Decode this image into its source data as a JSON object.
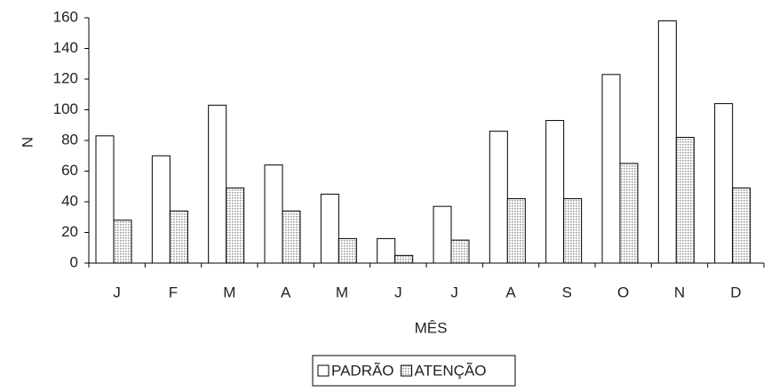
{
  "chart_data": {
    "type": "bar",
    "categories": [
      "J",
      "F",
      "M",
      "A",
      "M",
      "J",
      "J",
      "A",
      "S",
      "O",
      "N",
      "D"
    ],
    "series": [
      {
        "name": "PADRÃO",
        "color": "#ffffff",
        "values": [
          83,
          70,
          103,
          64,
          45,
          16,
          37,
          86,
          93,
          123,
          158,
          104
        ]
      },
      {
        "name": "ATENÇÃO",
        "color": "#9a9a9a",
        "values": [
          28,
          34,
          49,
          34,
          16,
          5,
          15,
          42,
          42,
          65,
          82,
          49
        ]
      }
    ],
    "x_label": "MÊS",
    "y_label": "N",
    "ylim": [
      0,
      160
    ],
    "yticks": [
      0,
      20,
      40,
      60,
      80,
      100,
      120,
      140,
      160
    ],
    "legend": "bottom"
  }
}
